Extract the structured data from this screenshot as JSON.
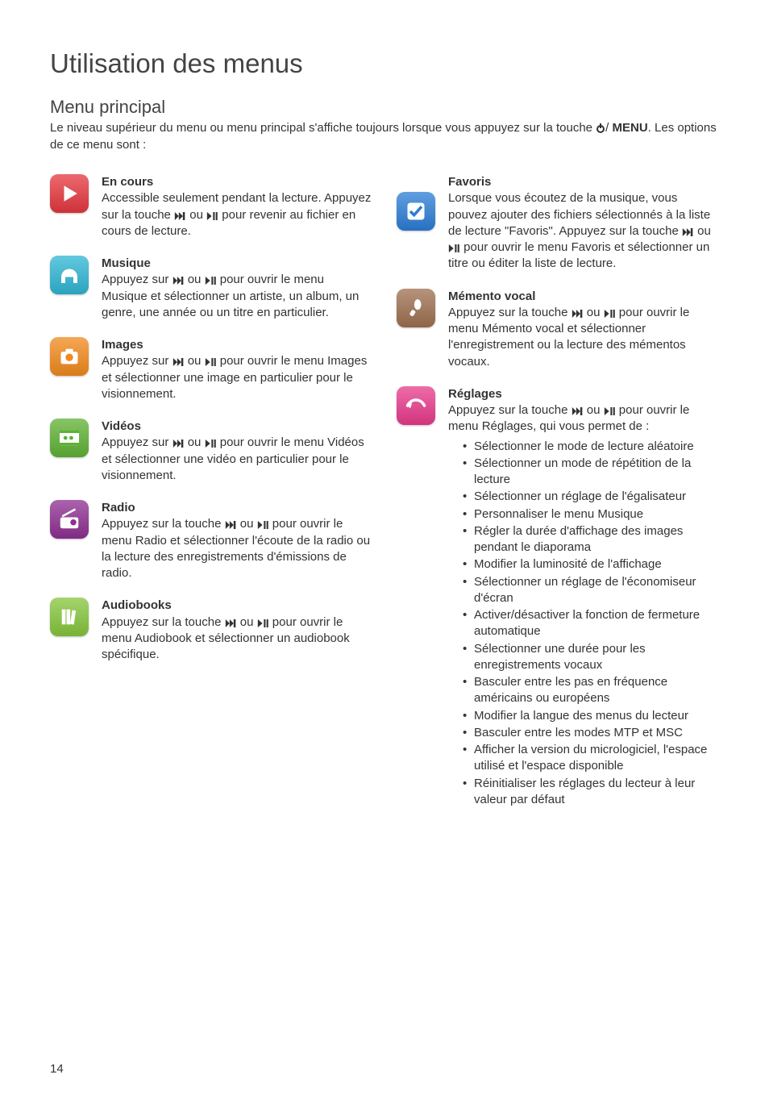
{
  "page_title": "Utilisation des menus",
  "section_title": "Menu principal",
  "intro_part1": "Le niveau supérieur du menu ou menu principal s'affiche toujours lorsque vous appuyez sur la touche ",
  "intro_part2": "MENU",
  "intro_part3": ". Les options de ce menu sont :",
  "page_number": "14",
  "icons": {
    "play": {
      "bg": "#e6373f"
    },
    "music": {
      "bg": "#2fb6d4"
    },
    "images": {
      "bg": "#f28a1c"
    },
    "videos": {
      "bg": "#5fb234"
    },
    "radio": {
      "bg": "#8e2f92"
    },
    "audiobooks": {
      "bg": "#86c63c"
    },
    "favorites": {
      "bg": "#2b7ed6"
    },
    "memo": {
      "bg": "#9e7050"
    },
    "settings": {
      "bg": "#e93a8c"
    }
  },
  "left": {
    "encours": {
      "title": "En cours",
      "p1": "Accessible seulement pendant la lecture. Appuyez sur la touche ",
      "p2": " ou ",
      "p3": " pour revenir au fichier en cours de lecture."
    },
    "musique": {
      "title": "Musique",
      "p1": "Appuyez sur ",
      "p2": " ou ",
      "p3": " pour ouvrir le menu Musique et sélectionner un artiste, un album, un genre, une année ou un titre en particulier."
    },
    "images": {
      "title": "Images",
      "p1": "Appuyez sur ",
      "p2": " ou ",
      "p3": " pour ouvrir le menu Images et sélectionner une image en particulier pour le visionnement."
    },
    "videos": {
      "title": "Vidéos",
      "p1": "Appuyez sur ",
      "p2": " ou ",
      "p3": " pour ouvrir le menu Vidéos et sélectionner une vidéo en particulier pour le visionnement."
    },
    "radio": {
      "title": "Radio",
      "p1": "Appuyez sur la touche ",
      "p2": " ou ",
      "p3": " pour ouvrir le menu Radio et sélectionner l'écoute de la radio ou la lecture des enregistrements d'émissions de radio."
    },
    "audiobooks": {
      "title": "Audiobooks",
      "p1": "Appuyez sur la touche ",
      "p2": " ou ",
      "p3": " pour ouvrir le menu Audiobook et sélectionner un audiobook spécifique."
    }
  },
  "right": {
    "favoris": {
      "title": "Favoris",
      "p1": "Lorsque vous écoutez de la musique, vous pouvez ajouter des fichiers sélectionnés à la liste de lecture \"Favoris\". Appuyez sur la touche ",
      "p2": " ou ",
      "p3": " pour ouvrir le menu Favoris et sélectionner un titre ou éditer la liste de lecture."
    },
    "memento": {
      "title": "Mémento vocal",
      "p1": "Appuyez sur la touche  ",
      "p2": " ou ",
      "p3": " pour ouvrir le menu Mémento vocal et sélectionner l'enregistrement ou la lecture des mémentos vocaux."
    },
    "reglages": {
      "title": "Réglages",
      "p1": "Appuyez sur la touche  ",
      "p2": " ou ",
      "p3": " pour ouvrir le menu Réglages, qui vous permet de :",
      "bullets": [
        "Sélectionner le mode de lecture aléatoire",
        "Sélectionner un mode de répétition de la lecture",
        "Sélectionner un réglage de l'égalisateur",
        "Personnaliser le menu Musique",
        "Régler la durée d'affichage des images pendant le diaporama",
        "Modifier la luminosité de l'affichage",
        "Sélectionner un réglage de l'économiseur d'écran",
        "Activer/désactiver la fonction de fermeture automatique",
        "Sélectionner une durée pour les enregistrements vocaux",
        "Basculer entre les pas en fréquence américains ou européens",
        "Modifier la langue des menus du lecteur",
        "Basculer entre les modes MTP et MSC",
        "Afficher la version du micrologiciel, l'espace utilisé et l'espace disponible",
        "Réinitialiser les réglages du lecteur à leur valeur par défaut"
      ]
    }
  }
}
